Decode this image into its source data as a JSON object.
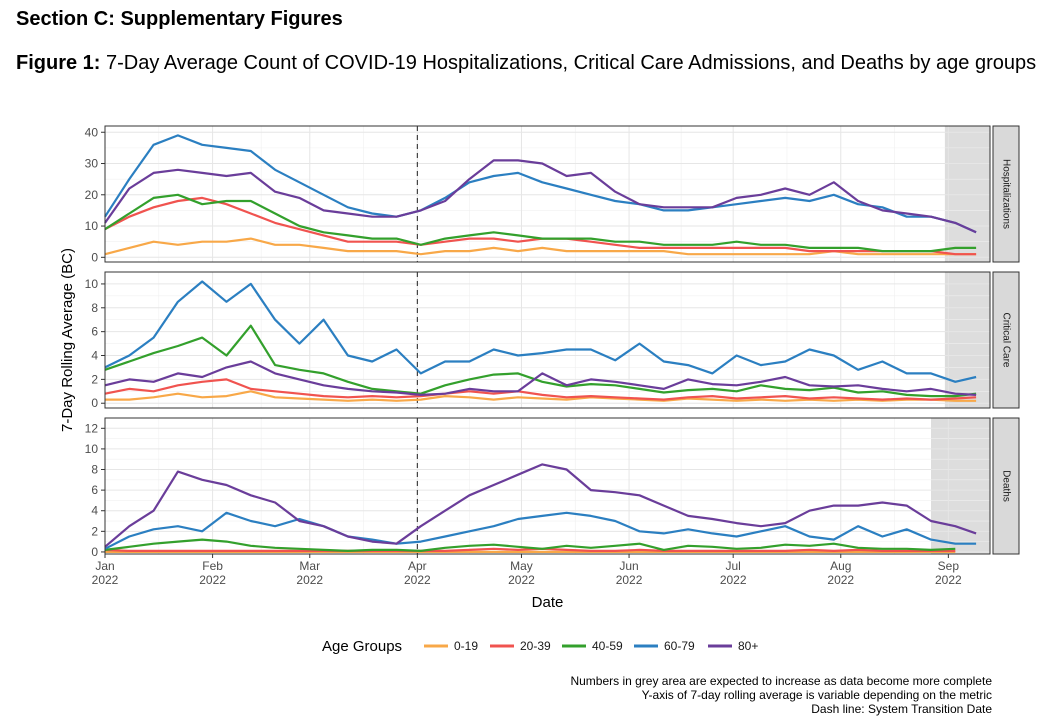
{
  "section_title": "Section C: Supplementary Figures",
  "figure": {
    "label": "Figure 1:",
    "caption": "7-Day Average Count of COVID-19 Hospitalizations, Critical Care Admissions, and Deaths by age groups"
  },
  "footnotes": [
    "Numbers in grey area are expected to increase as data become more complete",
    "Y-axis of 7-day rolling average is variable depending on the metric",
    "Dash line: System Transition Date"
  ],
  "chart_data": {
    "type": "line",
    "ylabel": "7-Day Rolling Average (BC)",
    "xlabel": "Date",
    "x_ticks": [
      {
        "line1": "Jan",
        "line2": "2022",
        "day": 0
      },
      {
        "line1": "Feb",
        "line2": "2022",
        "day": 31
      },
      {
        "line1": "Mar",
        "line2": "2022",
        "day": 59
      },
      {
        "line1": "Apr",
        "line2": "2022",
        "day": 90
      },
      {
        "line1": "May",
        "line2": "2022",
        "day": 120
      },
      {
        "line1": "Jun",
        "line2": "2022",
        "day": 151
      },
      {
        "line1": "Jul",
        "line2": "2022",
        "day": 181
      },
      {
        "line1": "Aug",
        "line2": "2022",
        "day": 212
      },
      {
        "line1": "Sep",
        "line2": "2022",
        "day": 243
      }
    ],
    "x_range_days": [
      0,
      255
    ],
    "transition_day": 90,
    "legend": {
      "title": "Age Groups",
      "position": "bottom"
    },
    "series_colors": {
      "0-19": "#F8A848",
      "20-39": "#F0534F",
      "40-59": "#33A02C",
      "60-79": "#2B7FC1",
      "80+": "#6A3D9A"
    },
    "series_names": [
      "0-19",
      "20-39",
      "40-59",
      "60-79",
      "80+"
    ],
    "sample_days": [
      0,
      7,
      14,
      21,
      28,
      35,
      42,
      49,
      56,
      63,
      70,
      77,
      84,
      91,
      98,
      105,
      112,
      119,
      126,
      133,
      140,
      147,
      154,
      161,
      168,
      175,
      182,
      189,
      196,
      203,
      210,
      217,
      224,
      231,
      238,
      245,
      251
    ],
    "panels": [
      {
        "name": "Hospitalizations",
        "ylim": [
          -1.5,
          42
        ],
        "yticks": [
          0,
          10,
          20,
          30,
          40
        ],
        "incomplete_from_day": 242,
        "series": {
          "0-19": [
            1,
            3,
            5,
            4,
            5,
            5,
            6,
            4,
            4,
            3,
            2,
            2,
            2,
            1,
            2,
            2,
            3,
            2,
            3,
            2,
            2,
            2,
            2,
            2,
            1,
            1,
            1,
            1,
            1,
            1,
            2,
            1,
            1,
            1,
            1,
            1,
            1
          ],
          "20-39": [
            9,
            13,
            16,
            18,
            19,
            17,
            14,
            11,
            9,
            7,
            5,
            5,
            5,
            4,
            5,
            6,
            6,
            5,
            6,
            6,
            5,
            4,
            3,
            3,
            3,
            3,
            3,
            3,
            3,
            2,
            2,
            2,
            2,
            2,
            2,
            1,
            1
          ],
          "40-59": [
            9,
            14,
            19,
            20,
            17,
            18,
            18,
            14,
            10,
            8,
            7,
            6,
            6,
            4,
            6,
            7,
            8,
            7,
            6,
            6,
            6,
            5,
            5,
            4,
            4,
            4,
            5,
            4,
            4,
            3,
            3,
            3,
            2,
            2,
            2,
            3,
            3
          ],
          "60-79": [
            13,
            25,
            36,
            39,
            36,
            35,
            34,
            28,
            24,
            20,
            16,
            14,
            13,
            15,
            19,
            24,
            26,
            27,
            24,
            22,
            20,
            18,
            17,
            15,
            15,
            16,
            17,
            18,
            19,
            18,
            20,
            17,
            16,
            13,
            13,
            11,
            8
          ],
          "80+": [
            11,
            22,
            27,
            28,
            27,
            26,
            27,
            21,
            19,
            15,
            14,
            13,
            13,
            15,
            18,
            25,
            31,
            31,
            30,
            26,
            27,
            21,
            17,
            16,
            16,
            16,
            19,
            20,
            22,
            20,
            24,
            18,
            15,
            14,
            13,
            11,
            8
          ]
        }
      },
      {
        "name": "Critical Care",
        "ylim": [
          -0.4,
          11
        ],
        "yticks": [
          0,
          2,
          4,
          6,
          8,
          10
        ],
        "incomplete_from_day": 242,
        "series": {
          "0-19": [
            0.3,
            0.3,
            0.5,
            0.8,
            0.5,
            0.6,
            1.0,
            0.5,
            0.4,
            0.3,
            0.2,
            0.3,
            0.2,
            0.3,
            0.6,
            0.5,
            0.3,
            0.5,
            0.4,
            0.3,
            0.5,
            0.4,
            0.3,
            0.2,
            0.4,
            0.3,
            0.2,
            0.3,
            0.2,
            0.3,
            0.2,
            0.3,
            0.2,
            0.3,
            0.3,
            0.2,
            0.2
          ],
          "20-39": [
            0.8,
            1.2,
            1.0,
            1.5,
            1.8,
            2.0,
            1.2,
            1.0,
            0.8,
            0.6,
            0.5,
            0.6,
            0.5,
            0.6,
            0.8,
            1.0,
            0.8,
            1.0,
            0.7,
            0.5,
            0.6,
            0.5,
            0.4,
            0.3,
            0.5,
            0.6,
            0.4,
            0.5,
            0.6,
            0.4,
            0.5,
            0.4,
            0.3,
            0.4,
            0.3,
            0.4,
            0.5
          ],
          "40-59": [
            2.8,
            3.5,
            4.2,
            4.8,
            5.5,
            4.0,
            6.5,
            3.2,
            2.8,
            2.5,
            1.8,
            1.2,
            1.0,
            0.8,
            1.5,
            2.0,
            2.4,
            2.5,
            1.8,
            1.4,
            1.6,
            1.5,
            1.2,
            0.9,
            1.1,
            1.2,
            1.0,
            1.5,
            1.2,
            1.1,
            1.3,
            0.9,
            1.0,
            0.7,
            0.6,
            0.6,
            0.8
          ],
          "60-79": [
            3.0,
            4.0,
            5.5,
            8.5,
            10.2,
            8.5,
            10.0,
            7.0,
            5.0,
            7.0,
            4.0,
            3.5,
            4.5,
            2.5,
            3.5,
            3.5,
            4.5,
            4.0,
            4.2,
            4.5,
            4.5,
            3.6,
            5.0,
            3.5,
            3.2,
            2.5,
            4.0,
            3.2,
            3.5,
            4.5,
            4.0,
            2.8,
            3.5,
            2.5,
            2.5,
            1.8,
            2.2
          ],
          "80+": [
            1.5,
            2.0,
            1.8,
            2.5,
            2.2,
            3.0,
            3.5,
            2.5,
            2.0,
            1.5,
            1.2,
            1.0,
            0.9,
            0.7,
            0.8,
            1.2,
            1.0,
            1.0,
            2.5,
            1.5,
            2.0,
            1.8,
            1.5,
            1.2,
            2.0,
            1.6,
            1.5,
            1.8,
            2.2,
            1.5,
            1.4,
            1.5,
            1.2,
            1.0,
            1.2,
            0.8,
            0.7
          ]
        }
      },
      {
        "name": "Deaths",
        "ylim": [
          -0.2,
          13
        ],
        "yticks": [
          0,
          2,
          4,
          6,
          8,
          10,
          12
        ],
        "incomplete_from_day": 238,
        "series": {
          "0-19": [
            0,
            0,
            0,
            0,
            0,
            0,
            0,
            0,
            0,
            0,
            0,
            0,
            0,
            0,
            0,
            0,
            0,
            0,
            0,
            0,
            0,
            0,
            0,
            0,
            0,
            0,
            0,
            0,
            0,
            0,
            0,
            0,
            0,
            0,
            0,
            0,
            null
          ],
          "20-39": [
            0.2,
            0.1,
            0.1,
            0.1,
            0.1,
            0.1,
            0.1,
            0.1,
            0.1,
            0.1,
            0.1,
            0.1,
            0.1,
            0.1,
            0.1,
            0.2,
            0.3,
            0.2,
            0.3,
            0.2,
            0.1,
            0.1,
            0.2,
            0.1,
            0.1,
            0.1,
            0.1,
            0.1,
            0.1,
            0.2,
            0.1,
            0.2,
            0.1,
            0.1,
            0.1,
            0.1,
            null
          ],
          "40-59": [
            0.2,
            0.5,
            0.8,
            1.0,
            1.2,
            1.0,
            0.6,
            0.4,
            0.3,
            0.2,
            0.1,
            0.2,
            0.2,
            0.1,
            0.4,
            0.6,
            0.7,
            0.5,
            0.3,
            0.6,
            0.4,
            0.6,
            0.8,
            0.2,
            0.6,
            0.5,
            0.3,
            0.4,
            0.7,
            0.6,
            0.8,
            0.4,
            0.3,
            0.3,
            0.2,
            0.3,
            null
          ],
          "60-79": [
            0.3,
            1.5,
            2.2,
            2.5,
            2.0,
            3.8,
            3.0,
            2.5,
            3.2,
            2.5,
            1.5,
            1.2,
            0.8,
            1.0,
            1.5,
            2.0,
            2.5,
            3.2,
            3.5,
            3.8,
            3.5,
            3.0,
            2.0,
            1.8,
            2.2,
            1.8,
            1.5,
            2.0,
            2.5,
            1.5,
            1.2,
            2.5,
            1.5,
            2.2,
            1.2,
            0.8,
            0.8
          ],
          "80+": [
            0.5,
            2.5,
            4.0,
            7.8,
            7.0,
            6.5,
            5.5,
            4.8,
            3.0,
            2.5,
            1.5,
            1.0,
            0.8,
            2.5,
            4.0,
            5.5,
            6.5,
            7.5,
            8.5,
            8.0,
            6.0,
            5.8,
            5.5,
            4.5,
            3.5,
            3.2,
            2.8,
            2.5,
            2.8,
            4.0,
            4.5,
            4.5,
            4.8,
            4.5,
            3.0,
            2.5,
            1.8
          ]
        }
      }
    ]
  }
}
